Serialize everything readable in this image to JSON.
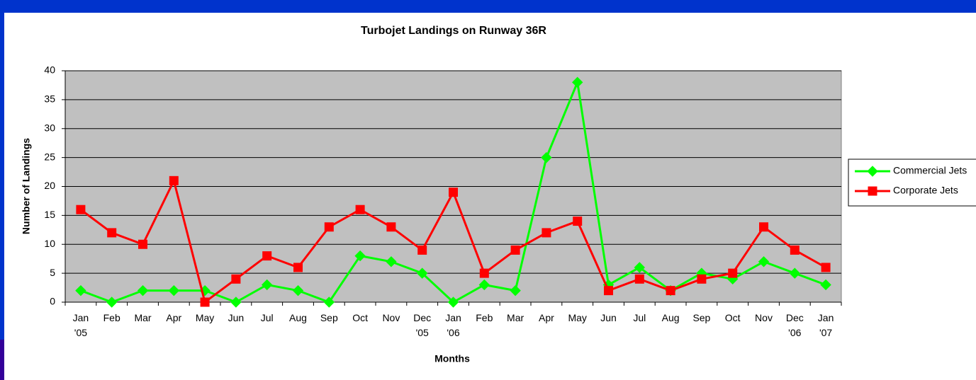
{
  "chart_data": {
    "type": "line",
    "title": "Turbojet Landings on Runway 36R",
    "x_label": "Months",
    "y_label": "Number of Landings",
    "categories": [
      "Jan\n'05",
      "Feb",
      "Mar",
      "Apr",
      "May",
      "Jun",
      "Jul",
      "Aug",
      "Sep",
      "Oct",
      "Nov",
      "Dec\n'05",
      "Jan\n'06",
      "Feb",
      "Mar",
      "Apr",
      "May",
      "Jun",
      "Jul",
      "Aug",
      "Sep",
      "Oct",
      "Nov",
      "Dec\n'06",
      "Jan\n'07"
    ],
    "series": [
      {
        "name": "Commercial Jets",
        "color": "#00ff00",
        "marker": "diamond",
        "values": [
          2,
          0,
          2,
          2,
          2,
          0,
          3,
          2,
          0,
          8,
          7,
          5,
          0,
          3,
          2,
          25,
          38,
          3,
          6,
          2,
          5,
          4,
          7,
          5,
          3
        ]
      },
      {
        "name": "Corporate Jets",
        "color": "#ff0000",
        "marker": "square",
        "values": [
          16,
          12,
          10,
          21,
          0,
          4,
          8,
          6,
          13,
          16,
          13,
          9,
          19,
          5,
          9,
          12,
          14,
          2,
          4,
          2,
          4,
          5,
          13,
          9,
          6
        ]
      }
    ],
    "ylim": [
      0,
      40
    ],
    "yticks": [
      0,
      5,
      10,
      15,
      20,
      25,
      30,
      35,
      40
    ],
    "grid": true,
    "legend": "right",
    "plot_background": "#c0c0c0"
  }
}
